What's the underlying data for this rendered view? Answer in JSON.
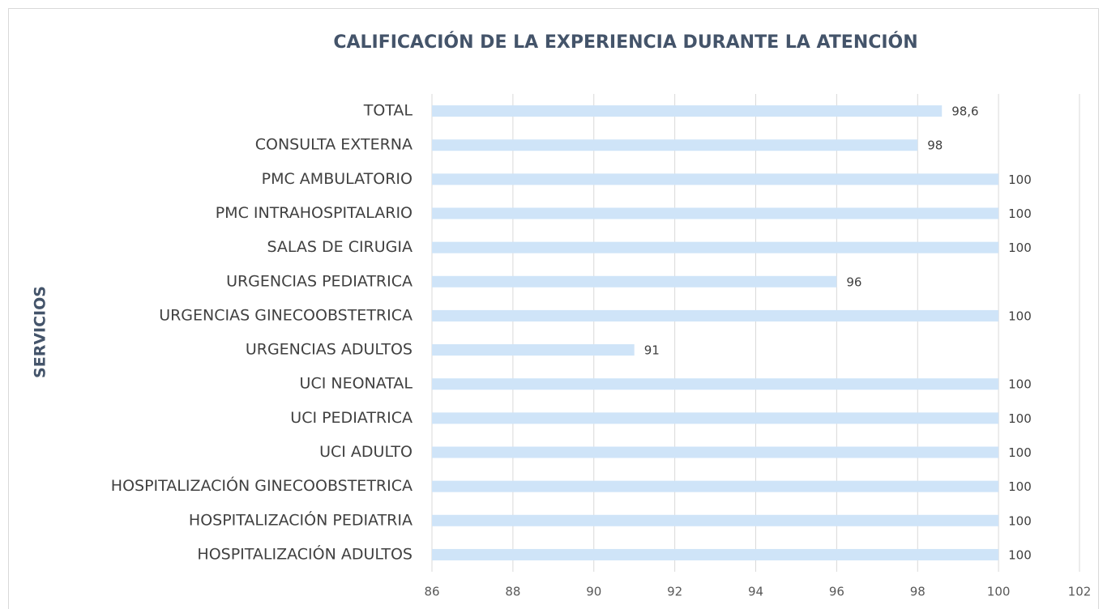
{
  "chart_data": {
    "type": "barh",
    "title": "CALIFICACIÓN DE LA EXPERIENCIA DURANTE LA ATENCIÓN",
    "y_label": "SERVICIOS",
    "categories": [
      "TOTAL",
      "CONSULTA EXTERNA",
      "PMC AMBULATORIO",
      "PMC INTRAHOSPITALARIO",
      "SALAS DE CIRUGIA",
      "URGENCIAS PEDIATRICA",
      "URGENCIAS GINECOOBSTETRICA",
      "URGENCIAS ADULTOS",
      "UCI NEONATAL",
      "UCI PEDIATRICA",
      "UCI ADULTO",
      "HOSPITALIZACIÓN GINECOOBSTETRICA",
      "HOSPITALIZACIÓN PEDIATRIA",
      "HOSPITALIZACIÓN ADULTOS"
    ],
    "values": [
      98.6,
      98,
      100,
      100,
      100,
      96,
      100,
      91,
      100,
      100,
      100,
      100,
      100,
      100
    ],
    "value_labels": [
      "98,6",
      "98",
      "100",
      "100",
      "100",
      "96",
      "100",
      "91",
      "100",
      "100",
      "100",
      "100",
      "100",
      "100"
    ],
    "color": "#cfe4f8",
    "xlim": [
      86,
      102
    ],
    "xticks": [
      86,
      88,
      90,
      92,
      94,
      96,
      98,
      100,
      102
    ],
    "grid": true
  }
}
